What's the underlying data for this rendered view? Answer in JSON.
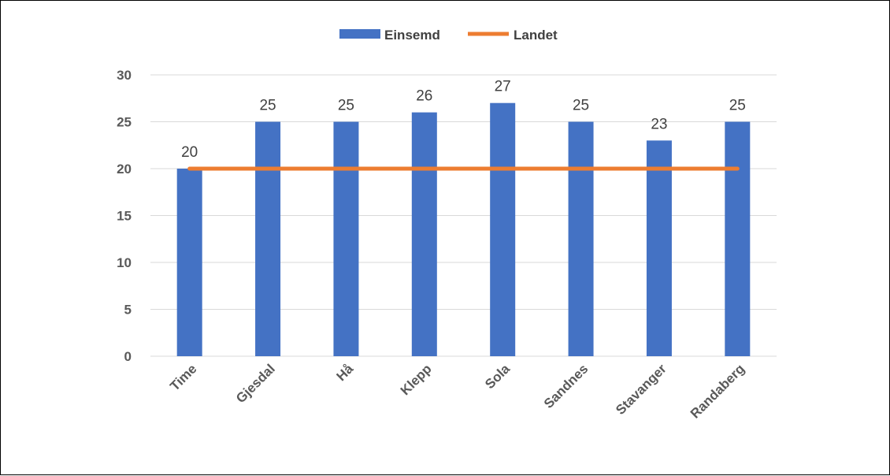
{
  "chart_data": {
    "type": "bar",
    "categories": [
      "Time",
      "Gjesdal",
      "Hå",
      "Klepp",
      "Sola",
      "Sandnes",
      "Stavanger",
      "Randaberg"
    ],
    "series": [
      {
        "name": "Einsemd",
        "type": "bar",
        "values": [
          20,
          25,
          25,
          26,
          27,
          25,
          23,
          25
        ]
      },
      {
        "name": "Landet",
        "type": "line",
        "values": [
          20,
          20,
          20,
          20,
          20,
          20,
          20,
          20
        ]
      }
    ],
    "y_ticks": [
      "0",
      "5",
      "10",
      "15",
      "20",
      "25",
      "30"
    ],
    "ylim": [
      0,
      30
    ],
    "grid": true,
    "legend_position": "top-center",
    "data_labels": [
      "20",
      "25",
      "25",
      "26",
      "27",
      "25",
      "23",
      "25"
    ],
    "colors": {
      "bar": "#4472C4",
      "line": "#ED7D31",
      "grid": "#D9D9D9"
    }
  }
}
